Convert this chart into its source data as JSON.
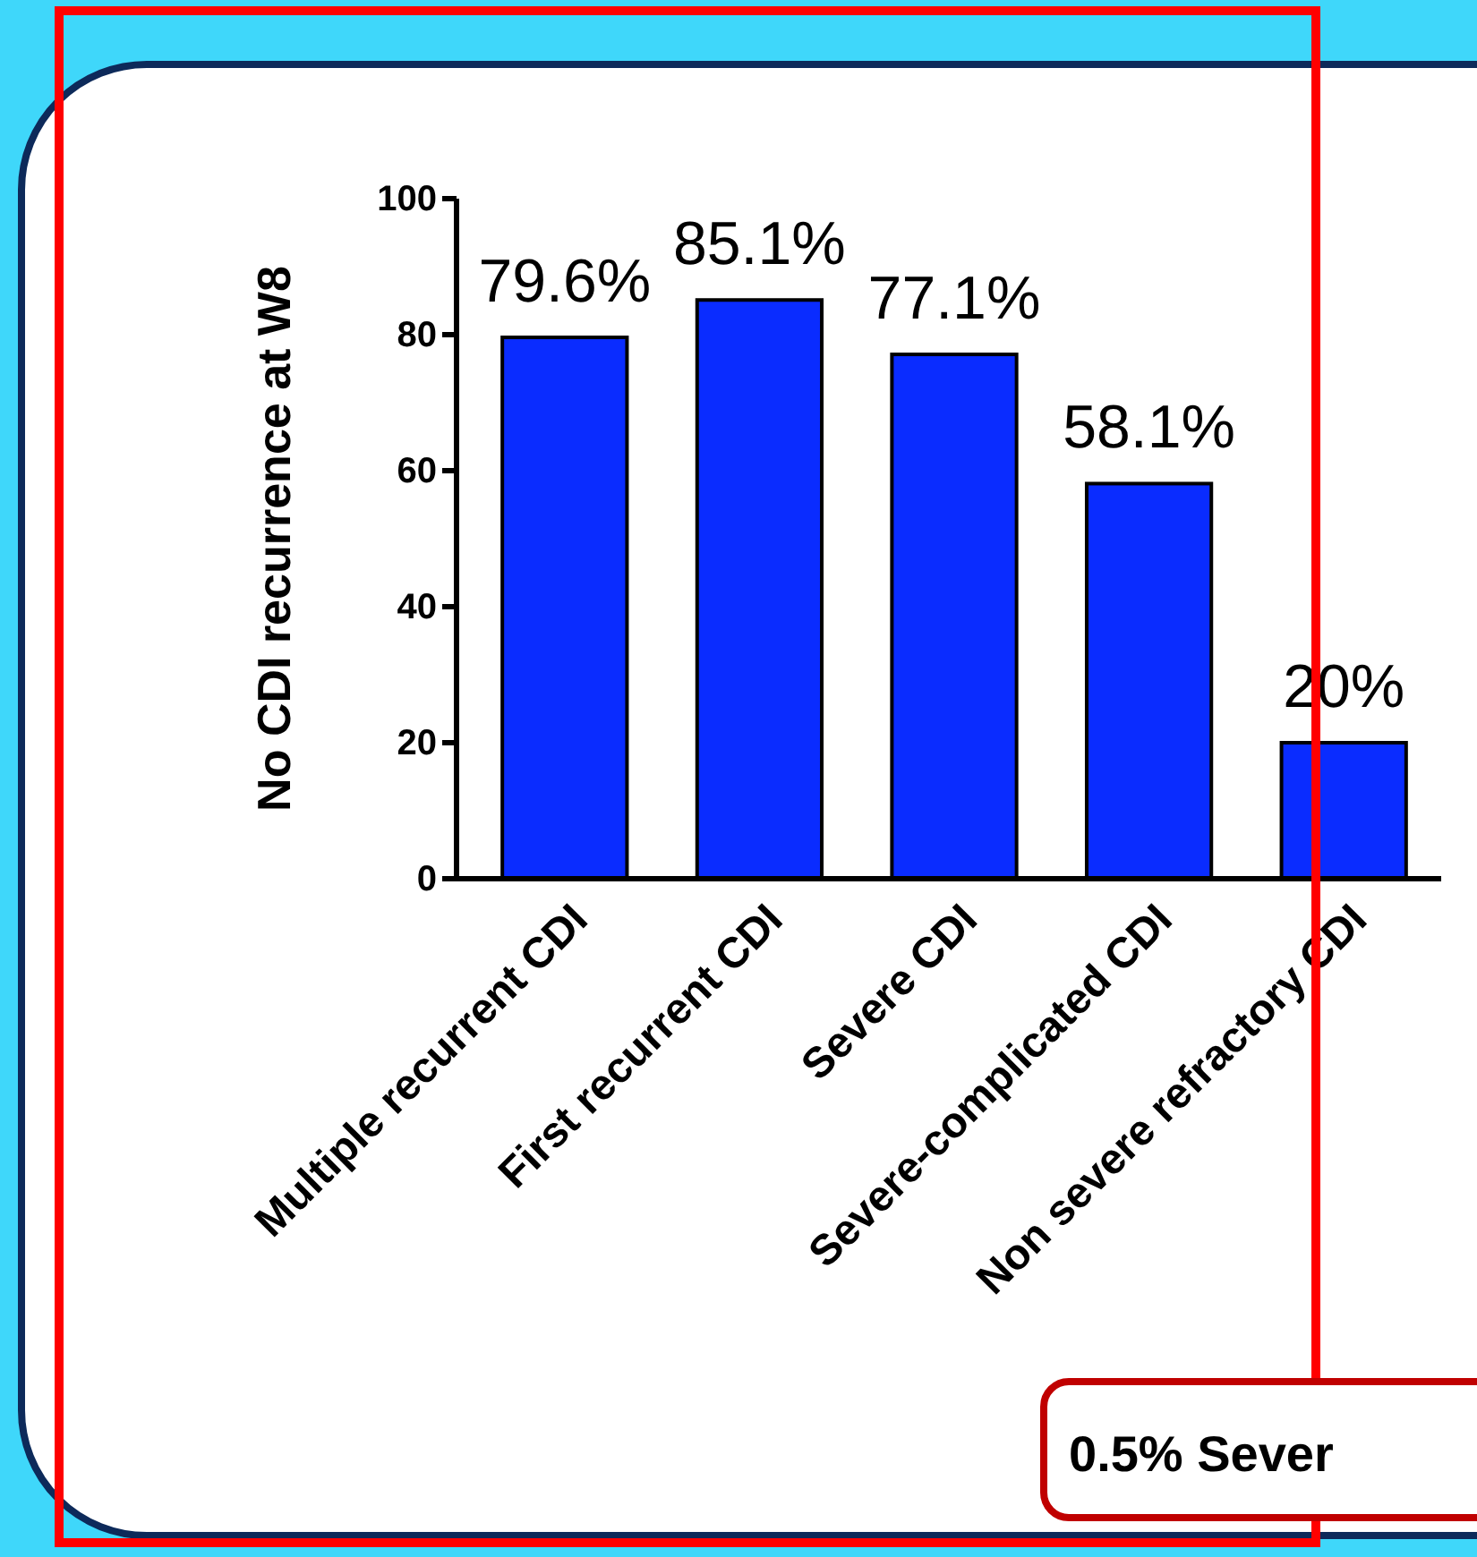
{
  "chart_data": {
    "type": "bar",
    "ylabel": "No CDI recurrence at W8",
    "categories": [
      "Multiple recurrent CDI",
      "First recurrent CDI",
      "Severe CDI",
      "Severe-complicated CDI",
      "Non severe refractory CDI"
    ],
    "values": [
      79.6,
      85.1,
      77.1,
      58.1,
      20
    ],
    "value_labels": [
      "79.6%",
      "85.1%",
      "77.1%",
      "58.1%",
      "20%"
    ],
    "color": "#0a2cff",
    "ylim": [
      0,
      100
    ],
    "yticks": [
      0,
      20,
      40,
      60,
      80,
      100
    ],
    "grid": false,
    "annotations": [
      "0.5% Sever"
    ]
  }
}
